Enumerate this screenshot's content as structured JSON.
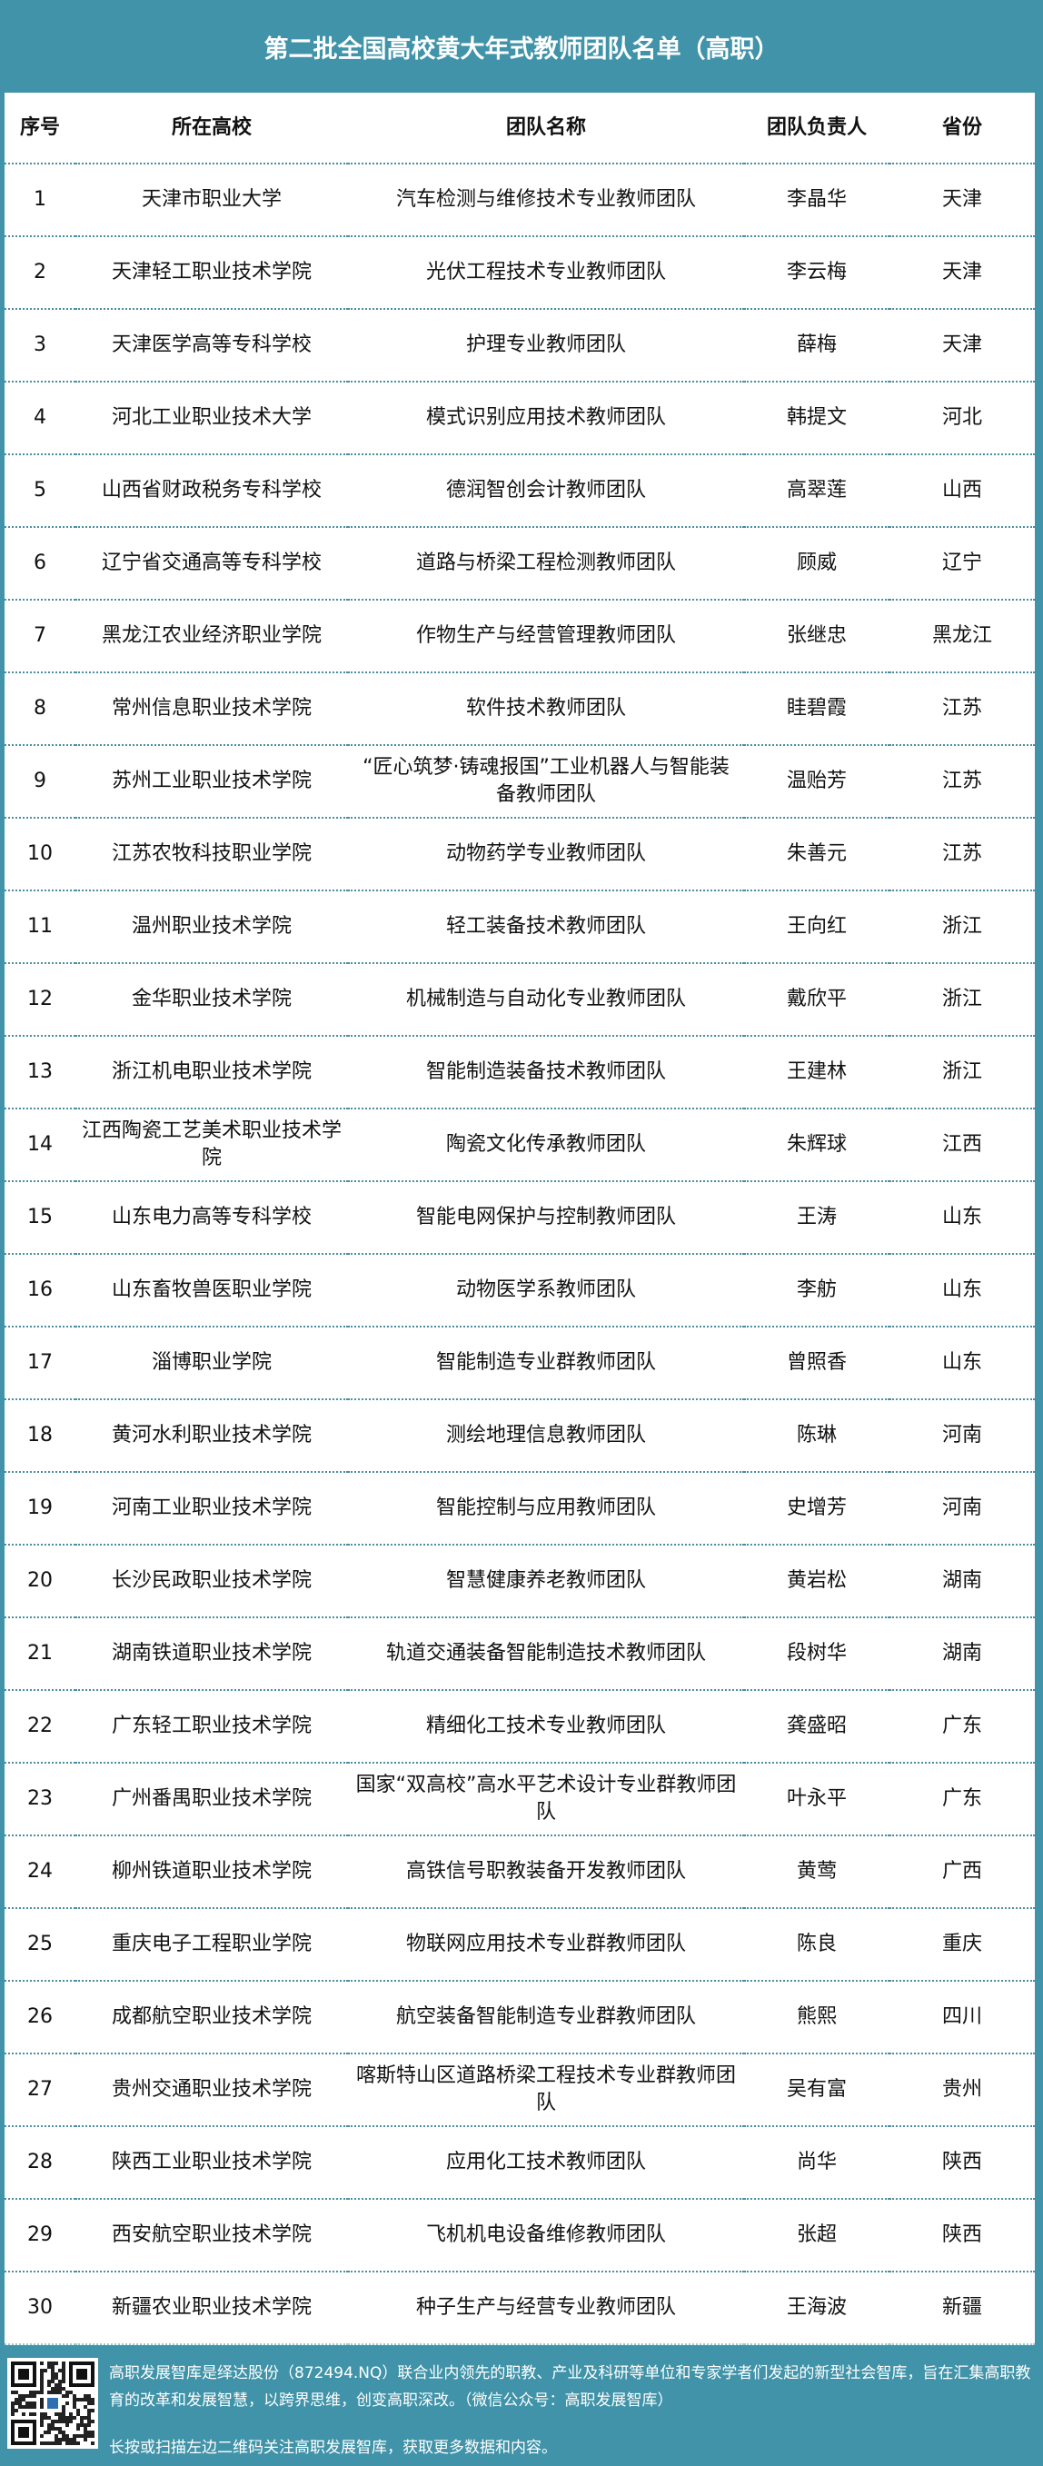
{
  "title": "第二批全国高校黄大年式教师团队名单（高职）",
  "table": {
    "headers": [
      "序号",
      "所在高校",
      "团队名称",
      "团队负责人",
      "省份"
    ],
    "rows": [
      [
        "1",
        "天津市职业大学",
        "汽车检测与维修技术专业教师团队",
        "李晶华",
        "天津"
      ],
      [
        "2",
        "天津轻工职业技术学院",
        "光伏工程技术专业教师团队",
        "李云梅",
        "天津"
      ],
      [
        "3",
        "天津医学高等专科学校",
        "护理专业教师团队",
        "薛梅",
        "天津"
      ],
      [
        "4",
        "河北工业职业技术大学",
        "模式识别应用技术教师团队",
        "韩提文",
        "河北"
      ],
      [
        "5",
        "山西省财政税务专科学校",
        "德润智创会计教师团队",
        "高翠莲",
        "山西"
      ],
      [
        "6",
        "辽宁省交通高等专科学校",
        "道路与桥梁工程检测教师团队",
        "顾威",
        "辽宁"
      ],
      [
        "7",
        "黑龙江农业经济职业学院",
        "作物生产与经营管理教师团队",
        "张继忠",
        "黑龙江"
      ],
      [
        "8",
        "常州信息职业技术学院",
        "软件技术教师团队",
        "眭碧霞",
        "江苏"
      ],
      [
        "9",
        "苏州工业职业技术学院",
        "“匠心筑梦·铸魂报国”工业机器人与智能装备教师团队",
        "温贻芳",
        "江苏"
      ],
      [
        "10",
        "江苏农牧科技职业学院",
        "动物药学专业教师团队",
        "朱善元",
        "江苏"
      ],
      [
        "11",
        "温州职业技术学院",
        "轻工装备技术教师团队",
        "王向红",
        "浙江"
      ],
      [
        "12",
        "金华职业技术学院",
        "机械制造与自动化专业教师团队",
        "戴欣平",
        "浙江"
      ],
      [
        "13",
        "浙江机电职业技术学院",
        "智能制造装备技术教师团队",
        "王建林",
        "浙江"
      ],
      [
        "14",
        "江西陶瓷工艺美术职业技术学院",
        "陶瓷文化传承教师团队",
        "朱辉球",
        "江西"
      ],
      [
        "15",
        "山东电力高等专科学校",
        "智能电网保护与控制教师团队",
        "王涛",
        "山东"
      ],
      [
        "16",
        "山东畜牧兽医职业学院",
        "动物医学系教师团队",
        "李舫",
        "山东"
      ],
      [
        "17",
        "淄博职业学院",
        "智能制造专业群教师团队",
        "曾照香",
        "山东"
      ],
      [
        "18",
        "黄河水利职业技术学院",
        "测绘地理信息教师团队",
        "陈琳",
        "河南"
      ],
      [
        "19",
        "河南工业职业技术学院",
        "智能控制与应用教师团队",
        "史增芳",
        "河南"
      ],
      [
        "20",
        "长沙民政职业技术学院",
        "智慧健康养老教师团队",
        "黄岩松",
        "湖南"
      ],
      [
        "21",
        "湖南铁道职业技术学院",
        "轨道交通装备智能制造技术教师团队",
        "段树华",
        "湖南"
      ],
      [
        "22",
        "广东轻工职业技术学院",
        "精细化工技术专业教师团队",
        "龚盛昭",
        "广东"
      ],
      [
        "23",
        "广州番禺职业技术学院",
        "国家“双高校”高水平艺术设计专业群教师团队",
        "叶永平",
        "广东"
      ],
      [
        "24",
        "柳州铁道职业技术学院",
        "高铁信号职教装备开发教师团队",
        "黄莺",
        "广西"
      ],
      [
        "25",
        "重庆电子工程职业学院",
        "物联网应用技术专业群教师团队",
        "陈良",
        "重庆"
      ],
      [
        "26",
        "成都航空职业技术学院",
        "航空装备智能制造专业群教师团队",
        "熊熙",
        "四川"
      ],
      [
        "27",
        "贵州交通职业技术学院",
        "喀斯特山区道路桥梁工程技术专业群教师团队",
        "吴有富",
        "贵州"
      ],
      [
        "28",
        "陕西工业职业技术学院",
        "应用化工技术教师团队",
        "尚华",
        "陕西"
      ],
      [
        "29",
        "西安航空职业技术学院",
        "飞机机电设备维修教师团队",
        "张超",
        "陕西"
      ],
      [
        "30",
        "新疆农业职业技术学院",
        "种子生产与经营专业教师团队",
        "王海波",
        "新疆"
      ]
    ]
  },
  "footer": {
    "qr_icon": "qr-code",
    "description": "高职发展智库是绎达股份（872494.NQ）联合业内领先的职教、产业及科研等单位和专家学者们发起的新型社会智库，旨在汇集高职教育的改革和发展智慧，以跨界思维，创变高职深改。（微信公众号：高职发展智库）",
    "cta": "长按或扫描左边二维码关注高职发展智库，获取更多数据和内容。"
  },
  "colors": {
    "band": "#4093a8",
    "divider": "#4a8ea0"
  }
}
